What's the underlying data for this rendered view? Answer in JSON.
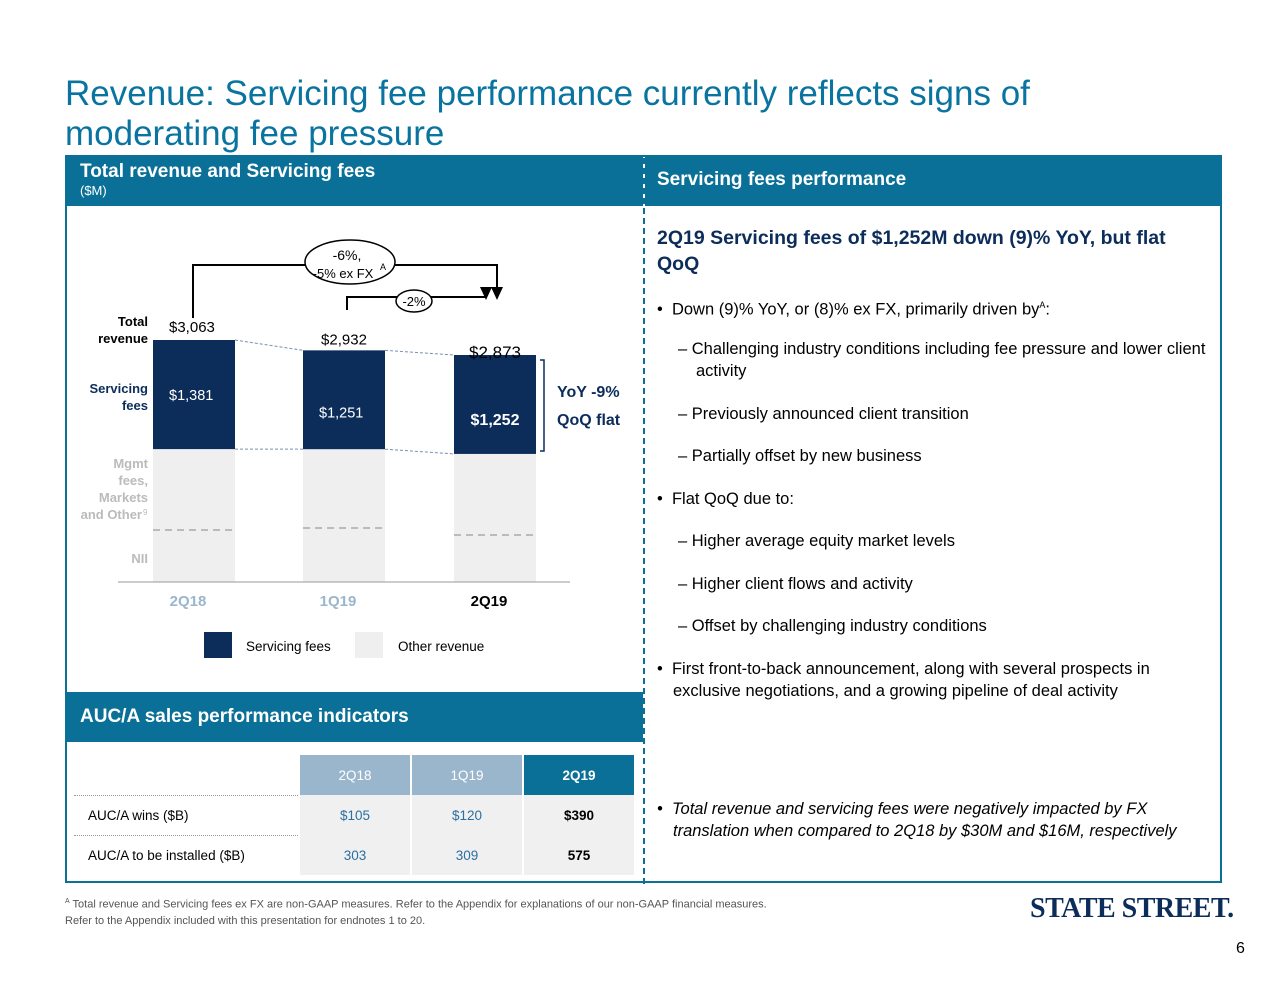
{
  "title": "Revenue:  Servicing fee performance currently reflects signs of moderating fee pressure",
  "left_header": {
    "title": "Total revenue and Servicing fees",
    "unit": "($M)"
  },
  "right_header": {
    "title": "Servicing fees performance"
  },
  "chart_data": {
    "type": "bar",
    "stacked": true,
    "categories": [
      "2Q18",
      "1Q19",
      "2Q19"
    ],
    "total_revenue": [
      3063,
      2932,
      2873
    ],
    "total_labels": [
      "$3,063",
      "$2,932",
      "$2,873"
    ],
    "series": [
      {
        "name": "Servicing fees",
        "values": [
          1381,
          1251,
          1252
        ],
        "labels": [
          "$1,381",
          "$1,251",
          "$1,252"
        ],
        "color": "#0c2d5a"
      },
      {
        "name": "Other revenue",
        "values": [
          1682,
          1681,
          1621
        ],
        "color": "#efefef"
      }
    ],
    "row_labels": {
      "total": "Total revenue",
      "servicing": "Servicing fees",
      "mgmt": "Mgmt fees, Markets and Other",
      "mgmt_sup": "9",
      "nii": "NII"
    },
    "annotations": {
      "yoy_total": "-6%,",
      "yoy_total_exfx": "-5% ex FX",
      "yoy_sup": "A",
      "qoq_total": "-2%",
      "sf_yoy": "YoY -9%",
      "sf_qoq": "QoQ  flat"
    },
    "legend": [
      "Servicing fees",
      "Other revenue"
    ]
  },
  "right": {
    "headline": "2Q19 Servicing fees of $1,252M down (9)% YoY, but flat QoQ",
    "b1": "Down (9)% YoY, or (8)% ex FX, primarily driven by",
    "b1_sup": "A",
    "b1_end": ":",
    "s1": "Challenging industry conditions including fee pressure and lower client activity",
    "s2": "Previously announced client transition",
    "s3": "Partially offset by new business",
    "b2": "Flat QoQ due to:",
    "s4": "Higher average equity market levels",
    "s5": "Higher client flows and activity",
    "s6": "Offset by challenging industry conditions",
    "b3": "First front-to-back announcement, along with several prospects in exclusive negotiations, and a growing pipeline of deal activity",
    "b4": "Total revenue and servicing fees were negatively impacted by FX translation when compared to 2Q18 by $30M and $16M, respectively"
  },
  "auc": {
    "title": "AUC/A sales performance indicators",
    "columns": [
      "2Q18",
      "1Q19",
      "2Q19"
    ],
    "rows": [
      {
        "label": "AUC/A wins ($B)",
        "values": [
          "$105",
          "$120",
          "$390"
        ]
      },
      {
        "label": "AUC/A to be installed ($B)",
        "values": [
          "303",
          "309",
          "575"
        ]
      }
    ]
  },
  "footnote1_sup": "A",
  "footnote1": "Total revenue and Servicing fees ex FX are non-GAAP measures. Refer to the Appendix for explanations of our non-GAAP financial measures.",
  "footnote2": "Refer to the Appendix included with this presentation for endnotes 1 to 20.",
  "logo": "STATE STREET.",
  "page_number": "6"
}
